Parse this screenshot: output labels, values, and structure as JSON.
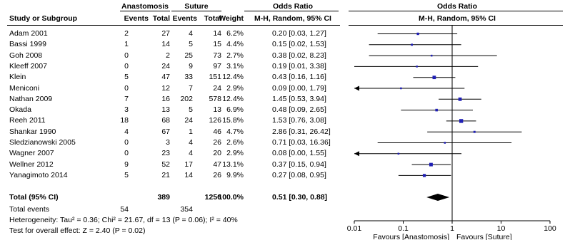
{
  "chart_data": {
    "type": "forest",
    "groups": {
      "experimental": "Anastomosis",
      "control": "Suture"
    },
    "headers": {
      "study": "Study or Subgroup",
      "events_e": "Events",
      "total_e": "Total",
      "events_c": "Events",
      "total_c": "Total",
      "weight": "Weight",
      "or_group": "Odds Ratio",
      "or_method": "M-H, Random, 95% CI",
      "plot_group": "Odds Ratio",
      "plot_method": "M-H, Random, 95% CI"
    },
    "studies": [
      {
        "name": "Adam 2001",
        "ee": "2",
        "te": "27",
        "ec": "4",
        "tc": "14",
        "weight": "6.2%",
        "or": 0.2,
        "lo": 0.03,
        "hi": 1.27,
        "ci": "0.20 [0.03, 1.27]"
      },
      {
        "name": "Bassi 1999",
        "ee": "1",
        "te": "14",
        "ec": "5",
        "tc": "15",
        "weight": "4.4%",
        "or": 0.15,
        "lo": 0.02,
        "hi": 1.53,
        "ci": "0.15 [0.02, 1.53]"
      },
      {
        "name": "Goh 2008",
        "ee": "0",
        "te": "2",
        "ec": "25",
        "tc": "73",
        "weight": "2.7%",
        "or": 0.38,
        "lo": 0.02,
        "hi": 8.23,
        "ci": "0.38 [0.02, 8.23]"
      },
      {
        "name": "Kleeff 2007",
        "ee": "0",
        "te": "24",
        "ec": "9",
        "tc": "97",
        "weight": "3.1%",
        "or": 0.19,
        "lo": 0.01,
        "hi": 3.38,
        "ci": "0.19 [0.01, 3.38]"
      },
      {
        "name": "Klein",
        "ee": "5",
        "te": "47",
        "ec": "33",
        "tc": "151",
        "weight": "12.4%",
        "or": 0.43,
        "lo": 0.16,
        "hi": 1.16,
        "ci": "0.43 [0.16, 1.16]"
      },
      {
        "name": "Meniconi",
        "ee": "0",
        "te": "12",
        "ec": "7",
        "tc": "24",
        "weight": "2.9%",
        "or": 0.09,
        "lo": 0.0,
        "hi": 1.79,
        "ci": "0.09 [0.00, 1.79]"
      },
      {
        "name": "Nathan 2009",
        "ee": "7",
        "te": "16",
        "ec": "202",
        "tc": "578",
        "weight": "12.4%",
        "or": 1.45,
        "lo": 0.53,
        "hi": 3.94,
        "ci": "1.45 [0.53, 3.94]"
      },
      {
        "name": "Okada",
        "ee": "3",
        "te": "13",
        "ec": "5",
        "tc": "13",
        "weight": "6.9%",
        "or": 0.48,
        "lo": 0.09,
        "hi": 2.65,
        "ci": "0.48 [0.09, 2.65]"
      },
      {
        "name": "Reeh 2011",
        "ee": "18",
        "te": "68",
        "ec": "24",
        "tc": "126",
        "weight": "15.8%",
        "or": 1.53,
        "lo": 0.76,
        "hi": 3.08,
        "ci": "1.53 [0.76, 3.08]"
      },
      {
        "name": "Shankar 1990",
        "ee": "4",
        "te": "67",
        "ec": "1",
        "tc": "46",
        "weight": "4.7%",
        "or": 2.86,
        "lo": 0.31,
        "hi": 26.42,
        "ci": "2.86 [0.31, 26.42]"
      },
      {
        "name": "Sledzianowski 2005",
        "ee": "0",
        "te": "3",
        "ec": "4",
        "tc": "26",
        "weight": "2.6%",
        "or": 0.71,
        "lo": 0.03,
        "hi": 16.36,
        "ci": "0.71 [0.03, 16.36]"
      },
      {
        "name": "Wagner 2007",
        "ee": "0",
        "te": "23",
        "ec": "4",
        "tc": "20",
        "weight": "2.9%",
        "or": 0.08,
        "lo": 0.0,
        "hi": 1.55,
        "ci": "0.08 [0.00, 1.55]"
      },
      {
        "name": "Wellner 2012",
        "ee": "9",
        "te": "52",
        "ec": "17",
        "tc": "47",
        "weight": "13.1%",
        "or": 0.37,
        "lo": 0.15,
        "hi": 0.94,
        "ci": "0.37 [0.15, 0.94]"
      },
      {
        "name": "Yanagimoto 2014",
        "ee": "5",
        "te": "21",
        "ec": "14",
        "tc": "26",
        "weight": "9.9%",
        "or": 0.27,
        "lo": 0.08,
        "hi": 0.95,
        "ci": "0.27 [0.08, 0.95]"
      }
    ],
    "total": {
      "name": "Total (95% CI)",
      "te": "389",
      "tc": "1256",
      "weight": "100.0%",
      "or": 0.51,
      "lo": 0.3,
      "hi": 0.88,
      "ci": "0.51 [0.30, 0.88]"
    },
    "total_events": {
      "label": "Total events",
      "e": "54",
      "c": "354"
    },
    "heterogeneity": "Heterogeneity: Tau² = 0.36; Chi² = 21.67, df = 13 (P = 0.06); I² = 40%",
    "overall_effect": "Test for overall effect: Z = 2.40 (P = 0.02)",
    "axis": {
      "scale": "log",
      "range": [
        0.01,
        100
      ],
      "ticks": [
        0.01,
        0.1,
        1,
        10,
        100
      ],
      "tick_labels": [
        "0.01",
        "0.1",
        "1",
        "10",
        "100"
      ],
      "favours_left": "Favours [Anastomosis]",
      "favours_right": "Favours [Suture]"
    },
    "colors": {
      "marker": "#1f1fb4",
      "diamond": "#000000",
      "line": "#000000"
    }
  }
}
